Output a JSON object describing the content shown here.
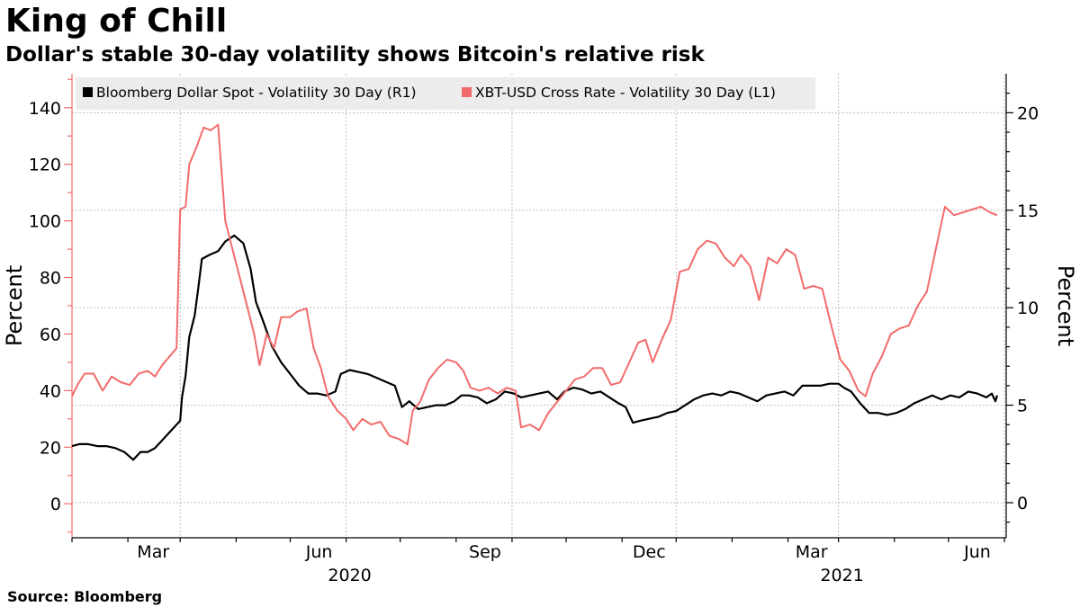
{
  "header": {
    "title": "King of Chill",
    "subtitle": "Dollar's stable 30-day volatility shows Bitcoin's relative risk"
  },
  "footer": {
    "source": "Source: Bloomberg"
  },
  "chart_data": {
    "type": "line",
    "title": "King of Chill",
    "subtitle": "Dollar's stable 30-day volatility shows Bitcoin's relative risk",
    "xlim": [
      "2020-01-01",
      "2021-06-02"
    ],
    "x_ticks": [
      {
        "date": "2020-03-01",
        "label": "Mar"
      },
      {
        "date": "2020-06-01",
        "label": "Jun"
      },
      {
        "date": "2020-09-01",
        "label": "Sep"
      },
      {
        "date": "2020-12-01",
        "label": "Dec"
      },
      {
        "date": "2021-03-01",
        "label": "Mar"
      },
      {
        "date": "2021-06-01",
        "label": "Jun"
      }
    ],
    "year_labels": [
      {
        "date": "2020-06-01",
        "label": "2020"
      },
      {
        "date": "2021-03-01",
        "label": "2021"
      }
    ],
    "y_left": {
      "label": "Percent",
      "ylim": [
        -12,
        152
      ],
      "ticks": [
        0,
        20,
        40,
        60,
        80,
        100,
        120,
        140
      ],
      "color": "#f26b6b"
    },
    "y_right": {
      "label": "Percent",
      "ylim": [
        -1.8,
        22
      ],
      "ticks": [
        0,
        5,
        10,
        15,
        20
      ],
      "color": "#000000"
    },
    "grid": true,
    "legend_position": "top-left",
    "series": [
      {
        "name": "Bloomberg Dollar Spot - Volatility 30 Day (R1)",
        "axis": "right",
        "color": "#000000",
        "points": [
          [
            "2020-01-01",
            2.9
          ],
          [
            "2020-01-05",
            3.0
          ],
          [
            "2020-01-10",
            3.0
          ],
          [
            "2020-01-15",
            2.9
          ],
          [
            "2020-01-20",
            2.9
          ],
          [
            "2020-01-25",
            2.8
          ],
          [
            "2020-01-30",
            2.6
          ],
          [
            "2020-02-04",
            2.2
          ],
          [
            "2020-02-08",
            2.6
          ],
          [
            "2020-02-12",
            2.6
          ],
          [
            "2020-02-16",
            2.8
          ],
          [
            "2020-02-20",
            3.2
          ],
          [
            "2020-02-24",
            3.6
          ],
          [
            "2020-02-27",
            3.9
          ],
          [
            "2020-03-01",
            4.2
          ],
          [
            "2020-03-02",
            5.4
          ],
          [
            "2020-03-04",
            6.5
          ],
          [
            "2020-03-06",
            8.5
          ],
          [
            "2020-03-09",
            9.6
          ],
          [
            "2020-03-11",
            11.0
          ],
          [
            "2020-03-13",
            12.5
          ],
          [
            "2020-03-17",
            12.7
          ],
          [
            "2020-03-22",
            12.9
          ],
          [
            "2020-03-26",
            13.4
          ],
          [
            "2020-03-31",
            13.7
          ],
          [
            "2020-04-05",
            13.3
          ],
          [
            "2020-04-09",
            12.0
          ],
          [
            "2020-04-12",
            10.3
          ],
          [
            "2020-04-16",
            9.3
          ],
          [
            "2020-04-21",
            8.0
          ],
          [
            "2020-04-26",
            7.2
          ],
          [
            "2020-05-01",
            6.6
          ],
          [
            "2020-05-06",
            6.0
          ],
          [
            "2020-05-11",
            5.6
          ],
          [
            "2020-05-16",
            5.6
          ],
          [
            "2020-05-21",
            5.5
          ],
          [
            "2020-05-26",
            5.7
          ],
          [
            "2020-05-29",
            6.6
          ],
          [
            "2020-06-03",
            6.8
          ],
          [
            "2020-06-08",
            6.7
          ],
          [
            "2020-06-13",
            6.6
          ],
          [
            "2020-06-18",
            6.4
          ],
          [
            "2020-06-23",
            6.2
          ],
          [
            "2020-06-28",
            6.0
          ],
          [
            "2020-07-02",
            4.9
          ],
          [
            "2020-07-06",
            5.2
          ],
          [
            "2020-07-11",
            4.8
          ],
          [
            "2020-07-16",
            4.9
          ],
          [
            "2020-07-21",
            5.0
          ],
          [
            "2020-07-26",
            5.0
          ],
          [
            "2020-07-31",
            5.2
          ],
          [
            "2020-08-04",
            5.5
          ],
          [
            "2020-08-08",
            5.5
          ],
          [
            "2020-08-13",
            5.4
          ],
          [
            "2020-08-18",
            5.1
          ],
          [
            "2020-08-23",
            5.3
          ],
          [
            "2020-08-28",
            5.7
          ],
          [
            "2020-09-02",
            5.6
          ],
          [
            "2020-09-06",
            5.4
          ],
          [
            "2020-09-11",
            5.5
          ],
          [
            "2020-09-16",
            5.6
          ],
          [
            "2020-09-21",
            5.7
          ],
          [
            "2020-09-26",
            5.3
          ],
          [
            "2020-09-30",
            5.7
          ],
          [
            "2020-10-05",
            5.9
          ],
          [
            "2020-10-10",
            5.8
          ],
          [
            "2020-10-15",
            5.6
          ],
          [
            "2020-10-20",
            5.7
          ],
          [
            "2020-10-25",
            5.4
          ],
          [
            "2020-10-30",
            5.1
          ],
          [
            "2020-11-03",
            4.9
          ],
          [
            "2020-11-07",
            4.1
          ],
          [
            "2020-11-11",
            4.2
          ],
          [
            "2020-11-16",
            4.3
          ],
          [
            "2020-11-21",
            4.4
          ],
          [
            "2020-11-26",
            4.6
          ],
          [
            "2020-12-01",
            4.7
          ],
          [
            "2020-12-06",
            5.0
          ],
          [
            "2020-12-11",
            5.3
          ],
          [
            "2020-12-16",
            5.5
          ],
          [
            "2020-12-21",
            5.6
          ],
          [
            "2020-12-26",
            5.5
          ],
          [
            "2020-12-31",
            5.7
          ],
          [
            "2021-01-05",
            5.6
          ],
          [
            "2021-01-10",
            5.4
          ],
          [
            "2021-01-15",
            5.2
          ],
          [
            "2021-01-20",
            5.5
          ],
          [
            "2021-01-25",
            5.6
          ],
          [
            "2021-01-30",
            5.7
          ],
          [
            "2021-02-04",
            5.5
          ],
          [
            "2021-02-09",
            6.0
          ],
          [
            "2021-02-14",
            6.0
          ],
          [
            "2021-02-19",
            6.0
          ],
          [
            "2021-02-24",
            6.1
          ],
          [
            "2021-03-01",
            6.1
          ],
          [
            "2021-03-04",
            5.9
          ],
          [
            "2021-03-08",
            5.7
          ],
          [
            "2021-03-13",
            5.1
          ],
          [
            "2021-03-18",
            4.6
          ],
          [
            "2021-03-23",
            4.6
          ],
          [
            "2021-03-28",
            4.5
          ],
          [
            "2021-04-02",
            4.6
          ],
          [
            "2021-04-07",
            4.8
          ],
          [
            "2021-04-12",
            5.1
          ],
          [
            "2021-04-17",
            5.3
          ],
          [
            "2021-04-22",
            5.5
          ],
          [
            "2021-04-27",
            5.3
          ],
          [
            "2021-05-02",
            5.5
          ],
          [
            "2021-05-07",
            5.4
          ],
          [
            "2021-05-12",
            5.7
          ],
          [
            "2021-05-17",
            5.6
          ],
          [
            "2021-05-22",
            5.4
          ],
          [
            "2021-05-25",
            5.6
          ],
          [
            "2021-05-27",
            5.2
          ],
          [
            "2021-05-28",
            5.5
          ]
        ]
      },
      {
        "name": "XBT-USD Cross Rate - Volatility 30 Day (L1)",
        "axis": "left",
        "color": "#f26b6b",
        "points": [
          [
            "2020-01-01",
            38
          ],
          [
            "2020-01-04",
            42
          ],
          [
            "2020-01-08",
            46
          ],
          [
            "2020-01-13",
            46
          ],
          [
            "2020-01-18",
            40
          ],
          [
            "2020-01-23",
            45
          ],
          [
            "2020-01-28",
            43
          ],
          [
            "2020-02-02",
            42
          ],
          [
            "2020-02-07",
            46
          ],
          [
            "2020-02-12",
            47
          ],
          [
            "2020-02-16",
            45
          ],
          [
            "2020-02-20",
            49
          ],
          [
            "2020-02-24",
            52
          ],
          [
            "2020-02-28",
            55
          ],
          [
            "2020-03-01",
            104
          ],
          [
            "2020-03-04",
            105
          ],
          [
            "2020-03-06",
            120
          ],
          [
            "2020-03-10",
            126
          ],
          [
            "2020-03-14",
            133
          ],
          [
            "2020-03-18",
            132
          ],
          [
            "2020-03-22",
            134
          ],
          [
            "2020-03-26",
            100
          ],
          [
            "2020-03-30",
            90
          ],
          [
            "2020-04-03",
            80
          ],
          [
            "2020-04-07",
            70
          ],
          [
            "2020-04-11",
            60
          ],
          [
            "2020-04-14",
            49
          ],
          [
            "2020-04-18",
            60
          ],
          [
            "2020-04-22",
            55
          ],
          [
            "2020-04-26",
            66
          ],
          [
            "2020-05-01",
            66
          ],
          [
            "2020-05-05",
            68
          ],
          [
            "2020-05-10",
            69
          ],
          [
            "2020-05-14",
            55
          ],
          [
            "2020-05-18",
            48
          ],
          [
            "2020-05-22",
            38
          ],
          [
            "2020-05-27",
            33
          ],
          [
            "2020-06-01",
            30
          ],
          [
            "2020-06-05",
            26
          ],
          [
            "2020-06-10",
            30
          ],
          [
            "2020-06-15",
            28
          ],
          [
            "2020-06-20",
            29
          ],
          [
            "2020-06-25",
            24
          ],
          [
            "2020-06-30",
            23
          ],
          [
            "2020-07-05",
            21
          ],
          [
            "2020-07-08",
            33
          ],
          [
            "2020-07-12",
            36
          ],
          [
            "2020-07-17",
            44
          ],
          [
            "2020-07-22",
            48
          ],
          [
            "2020-07-27",
            51
          ],
          [
            "2020-08-01",
            50
          ],
          [
            "2020-08-05",
            47
          ],
          [
            "2020-08-09",
            41
          ],
          [
            "2020-08-14",
            40
          ],
          [
            "2020-08-19",
            41
          ],
          [
            "2020-08-24",
            39
          ],
          [
            "2020-08-29",
            41
          ],
          [
            "2020-09-03",
            40
          ],
          [
            "2020-09-06",
            27
          ],
          [
            "2020-09-11",
            28
          ],
          [
            "2020-09-16",
            26
          ],
          [
            "2020-09-21",
            32
          ],
          [
            "2020-09-26",
            36
          ],
          [
            "2020-10-01",
            40
          ],
          [
            "2020-10-06",
            44
          ],
          [
            "2020-10-11",
            45
          ],
          [
            "2020-10-16",
            48
          ],
          [
            "2020-10-21",
            48
          ],
          [
            "2020-10-26",
            42
          ],
          [
            "2020-10-31",
            43
          ],
          [
            "2020-11-05",
            50
          ],
          [
            "2020-11-10",
            57
          ],
          [
            "2020-11-14",
            58
          ],
          [
            "2020-11-18",
            50
          ],
          [
            "2020-11-23",
            58
          ],
          [
            "2020-11-28",
            65
          ],
          [
            "2020-12-03",
            82
          ],
          [
            "2020-12-08",
            83
          ],
          [
            "2020-12-13",
            90
          ],
          [
            "2020-12-18",
            93
          ],
          [
            "2020-12-23",
            92
          ],
          [
            "2020-12-28",
            87
          ],
          [
            "2021-01-02",
            84
          ],
          [
            "2021-01-06",
            88
          ],
          [
            "2021-01-11",
            84
          ],
          [
            "2021-01-16",
            72
          ],
          [
            "2021-01-21",
            87
          ],
          [
            "2021-01-26",
            85
          ],
          [
            "2021-01-31",
            90
          ],
          [
            "2021-02-05",
            88
          ],
          [
            "2021-02-10",
            76
          ],
          [
            "2021-02-15",
            77
          ],
          [
            "2021-02-20",
            76
          ],
          [
            "2021-02-25",
            63
          ],
          [
            "2021-03-02",
            51
          ],
          [
            "2021-03-07",
            47
          ],
          [
            "2021-03-12",
            40
          ],
          [
            "2021-03-16",
            38
          ],
          [
            "2021-03-20",
            46
          ],
          [
            "2021-03-25",
            52
          ],
          [
            "2021-03-30",
            60
          ],
          [
            "2021-04-04",
            62
          ],
          [
            "2021-04-09",
            63
          ],
          [
            "2021-04-14",
            70
          ],
          [
            "2021-04-19",
            75
          ],
          [
            "2021-04-24",
            90
          ],
          [
            "2021-04-29",
            105
          ],
          [
            "2021-05-04",
            102
          ],
          [
            "2021-05-09",
            103
          ],
          [
            "2021-05-14",
            104
          ],
          [
            "2021-05-19",
            105
          ],
          [
            "2021-05-24",
            103
          ],
          [
            "2021-05-28",
            102
          ]
        ]
      }
    ]
  }
}
